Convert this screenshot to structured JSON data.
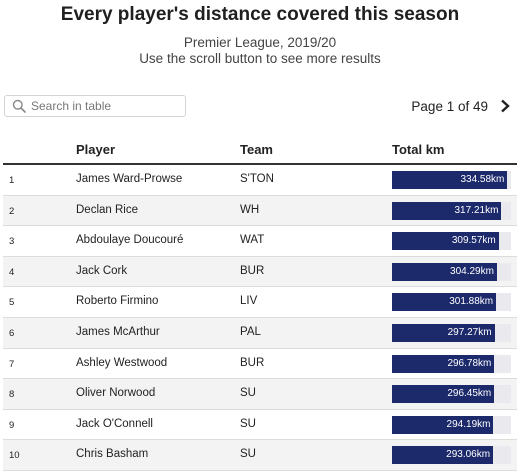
{
  "header": {
    "title": "Every player's distance covered this season",
    "subtitle1": "Premier League, 2019/20",
    "subtitle2": "Use the scroll button to see more results"
  },
  "search": {
    "placeholder": "Search in table",
    "value": ""
  },
  "pager": {
    "label": "Page 1 of 49"
  },
  "table": {
    "columns": [
      "",
      "Player",
      "Team",
      "Total km"
    ],
    "max_km": 345,
    "rows": [
      {
        "rank": "1",
        "player": "James Ward-Prowse",
        "team": "S'TON",
        "km": 334.58,
        "km_label": "334.58km"
      },
      {
        "rank": "2",
        "player": "Declan Rice",
        "team": "WH",
        "km": 317.21,
        "km_label": "317.21km"
      },
      {
        "rank": "3",
        "player": "Abdoulaye Doucouré",
        "team": "WAT",
        "km": 309.57,
        "km_label": "309.57km"
      },
      {
        "rank": "4",
        "player": "Jack Cork",
        "team": "BUR",
        "km": 304.29,
        "km_label": "304.29km"
      },
      {
        "rank": "5",
        "player": "Roberto Firmino",
        "team": "LIV",
        "km": 301.88,
        "km_label": "301.88km"
      },
      {
        "rank": "6",
        "player": "James McArthur",
        "team": "PAL",
        "km": 297.27,
        "km_label": "297.27km"
      },
      {
        "rank": "7",
        "player": "Ashley Westwood",
        "team": "BUR",
        "km": 296.78,
        "km_label": "296.78km"
      },
      {
        "rank": "8",
        "player": "Oliver Norwood",
        "team": "SU",
        "km": 296.45,
        "km_label": "296.45km"
      },
      {
        "rank": "9",
        "player": "Jack O'Connell",
        "team": "SU",
        "km": 294.19,
        "km_label": "294.19km"
      },
      {
        "rank": "10",
        "player": "Chris Basham",
        "team": "SU",
        "km": 293.06,
        "km_label": "293.06km"
      }
    ]
  },
  "colors": {
    "bar": "#1c2a6b",
    "bar_track": "#e9e9ee",
    "row_alt": "#f3f3f3"
  },
  "icons": {
    "search": "search-icon",
    "next": "chevron-right-icon"
  }
}
